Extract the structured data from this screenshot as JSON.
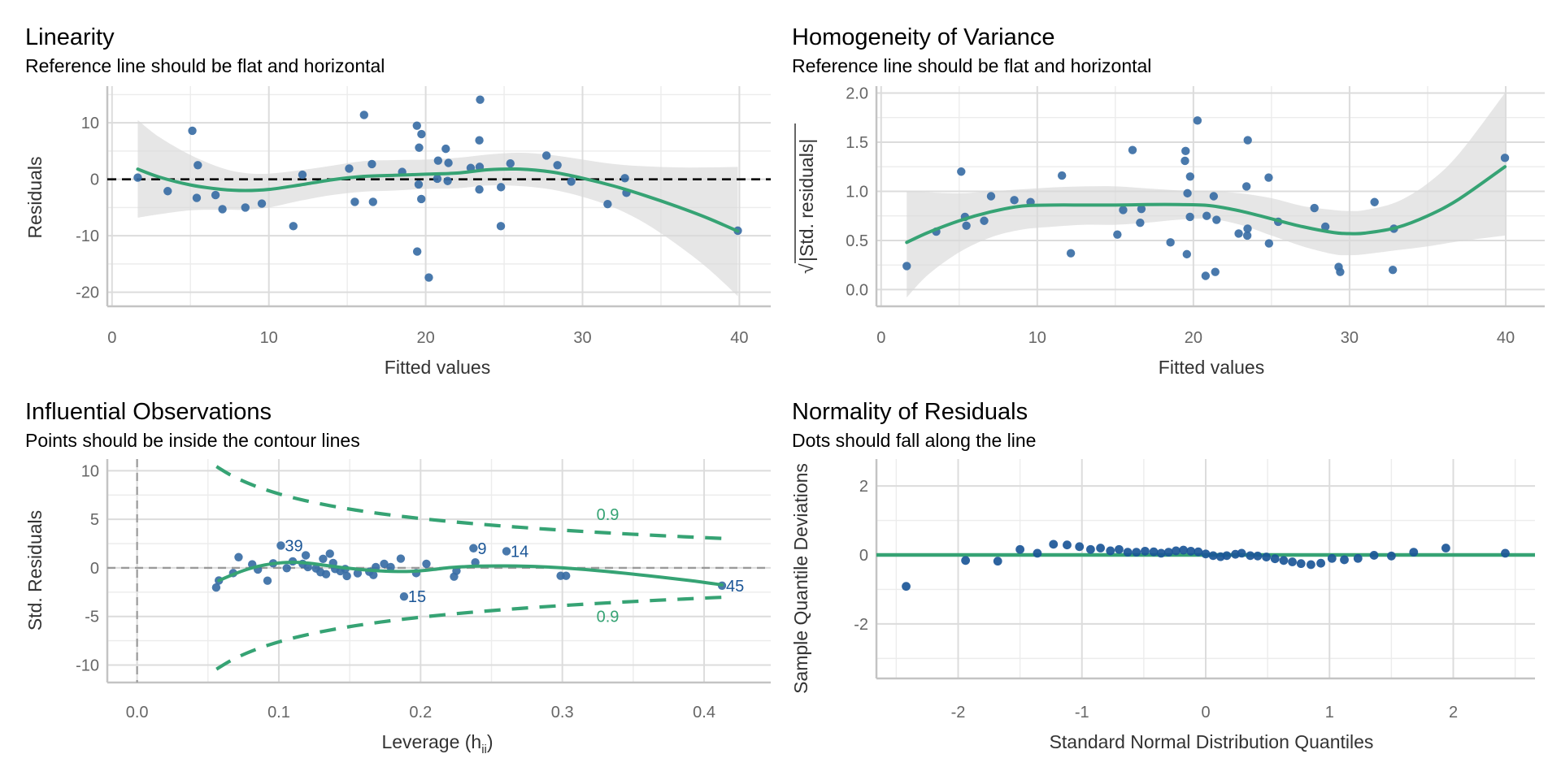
{
  "colors": {
    "point": "#3a6ea5",
    "qq_point": "#1b5697",
    "smooth": "#36a374",
    "reference_dashed": "#000000",
    "influence_ref": "#9a9a9a",
    "label_blue": "#1b5697",
    "label_green": "#36a374"
  },
  "chart_data": [
    {
      "id": "linearity",
      "type": "scatter",
      "title": "Linearity",
      "subtitle": "Reference line should be flat and horizontal",
      "xlabel": "Fitted values",
      "ylabel": "Residuals",
      "xlim": [
        -0.3,
        42
      ],
      "ylim": [
        -22.5,
        16.5
      ],
      "xticks": [
        0,
        10,
        20,
        30,
        40
      ],
      "xtick_labels": [
        "0",
        "10",
        "20",
        "30",
        "40"
      ],
      "xminor": [
        5,
        15,
        25,
        35
      ],
      "yticks": [
        -20,
        -10,
        0,
        10
      ],
      "ytick_labels": [
        "-20",
        "-10",
        "0",
        "10"
      ],
      "yminor": [
        -15,
        -5,
        5,
        15
      ],
      "grid": true,
      "reference_line": {
        "y": 0,
        "style": "dashed"
      },
      "points": [
        [
          1.64,
          0.3
        ],
        [
          3.55,
          -2.1
        ],
        [
          5.12,
          8.6
        ],
        [
          5.47,
          2.5
        ],
        [
          5.4,
          -3.3
        ],
        [
          6.6,
          -2.8
        ],
        [
          7.04,
          -5.3
        ],
        [
          8.5,
          -5.0
        ],
        [
          9.55,
          -4.3
        ],
        [
          11.56,
          -8.3
        ],
        [
          12.14,
          0.8
        ],
        [
          15.12,
          1.9
        ],
        [
          15.48,
          -4.0
        ],
        [
          16.07,
          11.4
        ],
        [
          16.57,
          2.7
        ],
        [
          16.64,
          -4.0
        ],
        [
          18.5,
          1.3
        ],
        [
          19.44,
          9.5
        ],
        [
          19.73,
          8.0
        ],
        [
          19.58,
          5.6
        ],
        [
          19.55,
          -0.9
        ],
        [
          19.72,
          -3.5
        ],
        [
          19.46,
          -12.8
        ],
        [
          20.2,
          -17.4
        ],
        [
          20.79,
          3.3
        ],
        [
          20.74,
          0.1
        ],
        [
          21.28,
          5.4
        ],
        [
          21.45,
          2.9
        ],
        [
          21.4,
          -0.3
        ],
        [
          22.87,
          2.0
        ],
        [
          23.47,
          14.1
        ],
        [
          23.42,
          6.9
        ],
        [
          23.44,
          2.2
        ],
        [
          23.42,
          -1.8
        ],
        [
          24.8,
          -1.4
        ],
        [
          24.79,
          -8.3
        ],
        [
          25.4,
          2.8
        ],
        [
          27.7,
          4.2
        ],
        [
          28.4,
          2.5
        ],
        [
          29.28,
          -0.4
        ],
        [
          31.6,
          -4.4
        ],
        [
          32.7,
          0.2
        ],
        [
          32.8,
          -2.4
        ],
        [
          39.9,
          -9.1
        ]
      ],
      "smooth": {
        "x": [
          1.64,
          3,
          5,
          7,
          8.5,
          10,
          12,
          14,
          16,
          18,
          20,
          22,
          24,
          26,
          28,
          30,
          32,
          34,
          36,
          38,
          39.9
        ],
        "y": [
          1.8,
          0.4,
          -1.0,
          -1.8,
          -2.0,
          -1.8,
          -1.0,
          -0.1,
          0.5,
          0.7,
          0.9,
          1.1,
          1.7,
          1.8,
          1.3,
          0.2,
          -1.2,
          -2.9,
          -4.8,
          -6.9,
          -9.2
        ],
        "ci_upper": [
          10.5,
          7.5,
          4.3,
          2.0,
          1.1,
          1.0,
          1.6,
          2.4,
          3.2,
          3.4,
          3.5,
          3.8,
          4.4,
          4.7,
          4.3,
          3.5,
          2.7,
          2.3,
          2.1,
          2.1,
          2.2
        ],
        "ci_lower": [
          -6.8,
          -6.2,
          -5.5,
          -5.4,
          -5.4,
          -5.0,
          -3.8,
          -2.8,
          -2.2,
          -2.0,
          -1.7,
          -1.6,
          -1.1,
          -1.2,
          -1.8,
          -3.1,
          -5.0,
          -7.8,
          -11.5,
          -15.8,
          -20.7
        ]
      }
    },
    {
      "id": "homogeneity",
      "type": "scatter",
      "title": "Homogeneity of Variance",
      "subtitle": "Reference line should be flat and horizontal",
      "xlabel": "Fitted values",
      "ylabel": "|Std. residuals|",
      "ylabel_prefix": "√",
      "xlim": [
        -0.3,
        42.5
      ],
      "ylim": [
        -0.17,
        2.07
      ],
      "xticks": [
        0,
        10,
        20,
        30,
        40
      ],
      "xtick_labels": [
        "0",
        "10",
        "20",
        "30",
        "40"
      ],
      "xminor": [
        5,
        15,
        25,
        35
      ],
      "yticks": [
        0,
        0.5,
        1.0,
        1.5,
        2.0
      ],
      "ytick_labels": [
        "0.0",
        "0.5",
        "1.0",
        "1.5",
        "2.0"
      ],
      "yminor": [
        0.25,
        0.75,
        1.25,
        1.75
      ],
      "grid": true,
      "points": [
        [
          1.64,
          0.24
        ],
        [
          3.53,
          0.59
        ],
        [
          5.13,
          1.2
        ],
        [
          5.37,
          0.74
        ],
        [
          5.46,
          0.65
        ],
        [
          6.6,
          0.7
        ],
        [
          7.04,
          0.95
        ],
        [
          8.53,
          0.91
        ],
        [
          9.57,
          0.89
        ],
        [
          11.58,
          1.16
        ],
        [
          12.15,
          0.37
        ],
        [
          15.13,
          0.56
        ],
        [
          15.5,
          0.81
        ],
        [
          16.1,
          1.42
        ],
        [
          16.67,
          0.82
        ],
        [
          16.59,
          0.68
        ],
        [
          18.53,
          0.48
        ],
        [
          19.5,
          1.41
        ],
        [
          19.46,
          1.31
        ],
        [
          19.79,
          1.15
        ],
        [
          19.62,
          0.98
        ],
        [
          19.78,
          0.74
        ],
        [
          19.58,
          0.36
        ],
        [
          20.26,
          1.72
        ],
        [
          20.78,
          0.14
        ],
        [
          21.4,
          0.18
        ],
        [
          20.85,
          0.75
        ],
        [
          21.3,
          0.95
        ],
        [
          21.48,
          0.71
        ],
        [
          22.9,
          0.57
        ],
        [
          23.48,
          1.52
        ],
        [
          23.4,
          1.05
        ],
        [
          23.47,
          0.62
        ],
        [
          23.45,
          0.55
        ],
        [
          24.82,
          1.14
        ],
        [
          24.84,
          0.47
        ],
        [
          25.43,
          0.69
        ],
        [
          27.75,
          0.83
        ],
        [
          28.45,
          0.64
        ],
        [
          29.3,
          0.23
        ],
        [
          29.4,
          0.18
        ],
        [
          31.6,
          0.89
        ],
        [
          32.84,
          0.62
        ],
        [
          32.77,
          0.2
        ],
        [
          39.95,
          1.34
        ]
      ],
      "smooth": {
        "x": [
          1.64,
          3,
          5,
          7,
          9,
          11,
          13,
          15,
          17,
          19,
          21,
          23,
          25,
          27,
          29,
          30,
          31,
          33,
          35,
          37,
          39.95
        ],
        "y": [
          0.48,
          0.58,
          0.7,
          0.79,
          0.85,
          0.86,
          0.86,
          0.86,
          0.865,
          0.865,
          0.855,
          0.8,
          0.72,
          0.64,
          0.58,
          0.57,
          0.575,
          0.63,
          0.75,
          0.92,
          1.25
        ],
        "ci_upper": [
          1.0,
          0.99,
          0.98,
          1.0,
          1.02,
          1.04,
          1.05,
          1.05,
          1.03,
          1.01,
          1.0,
          0.98,
          0.93,
          0.85,
          0.81,
          0.8,
          0.81,
          0.89,
          1.08,
          1.38,
          2.0
        ],
        "ci_lower": [
          -0.08,
          0.15,
          0.38,
          0.53,
          0.61,
          0.64,
          0.66,
          0.66,
          0.68,
          0.71,
          0.72,
          0.66,
          0.55,
          0.44,
          0.36,
          0.35,
          0.36,
          0.4,
          0.44,
          0.49,
          0.55
        ]
      }
    },
    {
      "id": "influential",
      "type": "scatter",
      "title": "Influential Observations",
      "subtitle": "Points should be inside the contour lines",
      "xlabel": "Leverage (h",
      "xlabel_sub": "ii",
      "xlabel_suffix": ")",
      "ylabel": "Std. Residuals",
      "xlim": [
        -0.021,
        0.447
      ],
      "ylim": [
        -11.8,
        11.2
      ],
      "xticks": [
        0.0,
        0.1,
        0.2,
        0.3,
        0.4
      ],
      "xtick_labels": [
        "0.0",
        "0.1",
        "0.2",
        "0.3",
        "0.4"
      ],
      "xminor": [
        0.05,
        0.15,
        0.25,
        0.35
      ],
      "yticks": [
        -10,
        -5,
        0,
        5,
        10
      ],
      "ytick_labels": [
        "-10",
        "-5",
        "0",
        "5",
        "10"
      ],
      "yminor": [
        -7.5,
        -2.5,
        2.5,
        7.5
      ],
      "grid": true,
      "reference_lines": {
        "x": 0,
        "y": 0,
        "style": "dashed"
      },
      "points": [
        [
          0.0558,
          -2.02
        ],
        [
          0.0577,
          -1.3
        ],
        [
          0.0678,
          -0.54
        ],
        [
          0.0716,
          1.1
        ],
        [
          0.0812,
          0.36
        ],
        [
          0.0852,
          -0.17
        ],
        [
          0.092,
          -1.32
        ],
        [
          0.096,
          0.47
        ],
        [
          0.1014,
          2.3
        ],
        [
          0.1056,
          -0.03
        ],
        [
          0.1098,
          0.67
        ],
        [
          0.119,
          1.29
        ],
        [
          0.1168,
          0.42
        ],
        [
          0.1205,
          0.08
        ],
        [
          0.1262,
          -0.06
        ],
        [
          0.1294,
          -0.45
        ],
        [
          0.1312,
          0.93
        ],
        [
          0.1333,
          -0.65
        ],
        [
          0.136,
          1.46
        ],
        [
          0.1383,
          0.5
        ],
        [
          0.1397,
          -0.12
        ],
        [
          0.1434,
          -0.34
        ],
        [
          0.1468,
          -0.12
        ],
        [
          0.148,
          -0.84
        ],
        [
          0.1556,
          -0.56
        ],
        [
          0.1638,
          -0.4
        ],
        [
          0.1667,
          -0.73
        ],
        [
          0.1684,
          0.08
        ],
        [
          0.1743,
          0.42
        ],
        [
          0.1789,
          0.08
        ],
        [
          0.186,
          0.95
        ],
        [
          0.1883,
          -2.95
        ],
        [
          0.1969,
          -0.54
        ],
        [
          0.2041,
          0.42
        ],
        [
          0.2236,
          -0.9
        ],
        [
          0.2253,
          -0.31
        ],
        [
          0.2373,
          2.02
        ],
        [
          0.2386,
          0.56
        ],
        [
          0.2606,
          1.71
        ],
        [
          0.2988,
          -0.82
        ],
        [
          0.3026,
          -0.82
        ],
        [
          0.4126,
          -1.83
        ]
      ],
      "labeled_points": [
        {
          "label": "39",
          "x": 0.1014,
          "y": 2.3
        },
        {
          "label": "15",
          "x": 0.1883,
          "y": -2.95
        },
        {
          "label": "9",
          "x": 0.2373,
          "y": 2.02
        },
        {
          "label": "14",
          "x": 0.2606,
          "y": 1.71
        },
        {
          "label": "45",
          "x": 0.4126,
          "y": -1.83
        }
      ],
      "contour": {
        "level": 0.9,
        "label": "0.9",
        "x_range": [
          0.056,
          0.4126
        ],
        "param_count": 7.17,
        "label_pos_upper": [
          0.332,
          5.5
        ],
        "label_pos_lower": [
          0.332,
          -4.97
        ]
      },
      "smooth": {
        "x": [
          0.0577,
          0.07,
          0.08,
          0.09,
          0.1,
          0.11,
          0.12,
          0.13,
          0.14,
          0.15,
          0.16,
          0.17,
          0.18,
          0.19,
          0.2,
          0.21,
          0.22,
          0.23,
          0.24,
          0.26,
          0.28,
          0.3,
          0.33,
          0.36,
          0.39,
          0.4126
        ],
        "y": [
          -1.3,
          -0.55,
          -0.05,
          0.3,
          0.5,
          0.58,
          0.5,
          0.32,
          0.12,
          -0.05,
          -0.2,
          -0.3,
          -0.36,
          -0.37,
          -0.3,
          -0.15,
          0.02,
          0.12,
          0.18,
          0.2,
          0.15,
          0.0,
          -0.35,
          -0.8,
          -1.3,
          -1.75
        ]
      }
    },
    {
      "id": "normality",
      "type": "scatter",
      "title": "Normality of Residuals",
      "subtitle": "Dots should fall along the line",
      "xlabel": "Standard Normal Distribution Quantiles",
      "ylabel": "Sample Quantile Deviations",
      "xlim": [
        -2.66,
        2.66
      ],
      "ylim": [
        -3.58,
        2.78
      ],
      "xticks": [
        -2,
        -1,
        0,
        1,
        2
      ],
      "xtick_labels": [
        "-2",
        "-1",
        "0",
        "1",
        "2"
      ],
      "xminor": [
        -2.5,
        -1.5,
        -0.5,
        0.5,
        1.5,
        2.5
      ],
      "yticks": [
        -2,
        0,
        2
      ],
      "ytick_labels": [
        "-2",
        "0",
        "2"
      ],
      "yminor": [
        -3,
        -1,
        1
      ],
      "grid": true,
      "reference_line": {
        "y": 0,
        "style": "solid"
      },
      "points": [
        [
          -2.42,
          -0.91
        ],
        [
          -1.94,
          -0.16
        ],
        [
          -1.68,
          -0.18
        ],
        [
          -1.5,
          0.16
        ],
        [
          -1.36,
          0.05
        ],
        [
          -1.23,
          0.31
        ],
        [
          -1.12,
          0.29
        ],
        [
          -1.02,
          0.24
        ],
        [
          -0.93,
          0.16
        ],
        [
          -0.85,
          0.2
        ],
        [
          -0.77,
          0.12
        ],
        [
          -0.7,
          0.16
        ],
        [
          -0.63,
          0.08
        ],
        [
          -0.56,
          0.08
        ],
        [
          -0.49,
          0.11
        ],
        [
          -0.42,
          0.09
        ],
        [
          -0.36,
          0.05
        ],
        [
          -0.3,
          0.08
        ],
        [
          -0.24,
          0.12
        ],
        [
          -0.18,
          0.14
        ],
        [
          -0.12,
          0.11
        ],
        [
          -0.06,
          0.09
        ],
        [
          0.0,
          0.03
        ],
        [
          0.06,
          -0.02
        ],
        [
          0.12,
          -0.05
        ],
        [
          0.17,
          -0.02
        ],
        [
          0.24,
          0.02
        ],
        [
          0.29,
          0.05
        ],
        [
          0.36,
          -0.02
        ],
        [
          0.42,
          -0.03
        ],
        [
          0.49,
          -0.06
        ],
        [
          0.56,
          -0.11
        ],
        [
          0.63,
          -0.16
        ],
        [
          0.7,
          -0.2
        ],
        [
          0.77,
          -0.25
        ],
        [
          0.85,
          -0.28
        ],
        [
          0.93,
          -0.24
        ],
        [
          1.02,
          -0.1
        ],
        [
          1.12,
          -0.14
        ],
        [
          1.23,
          -0.1
        ],
        [
          1.36,
          -0.01
        ],
        [
          1.5,
          -0.03
        ],
        [
          1.68,
          0.08
        ],
        [
          1.94,
          0.2
        ],
        [
          2.42,
          0.05
        ]
      ]
    }
  ]
}
